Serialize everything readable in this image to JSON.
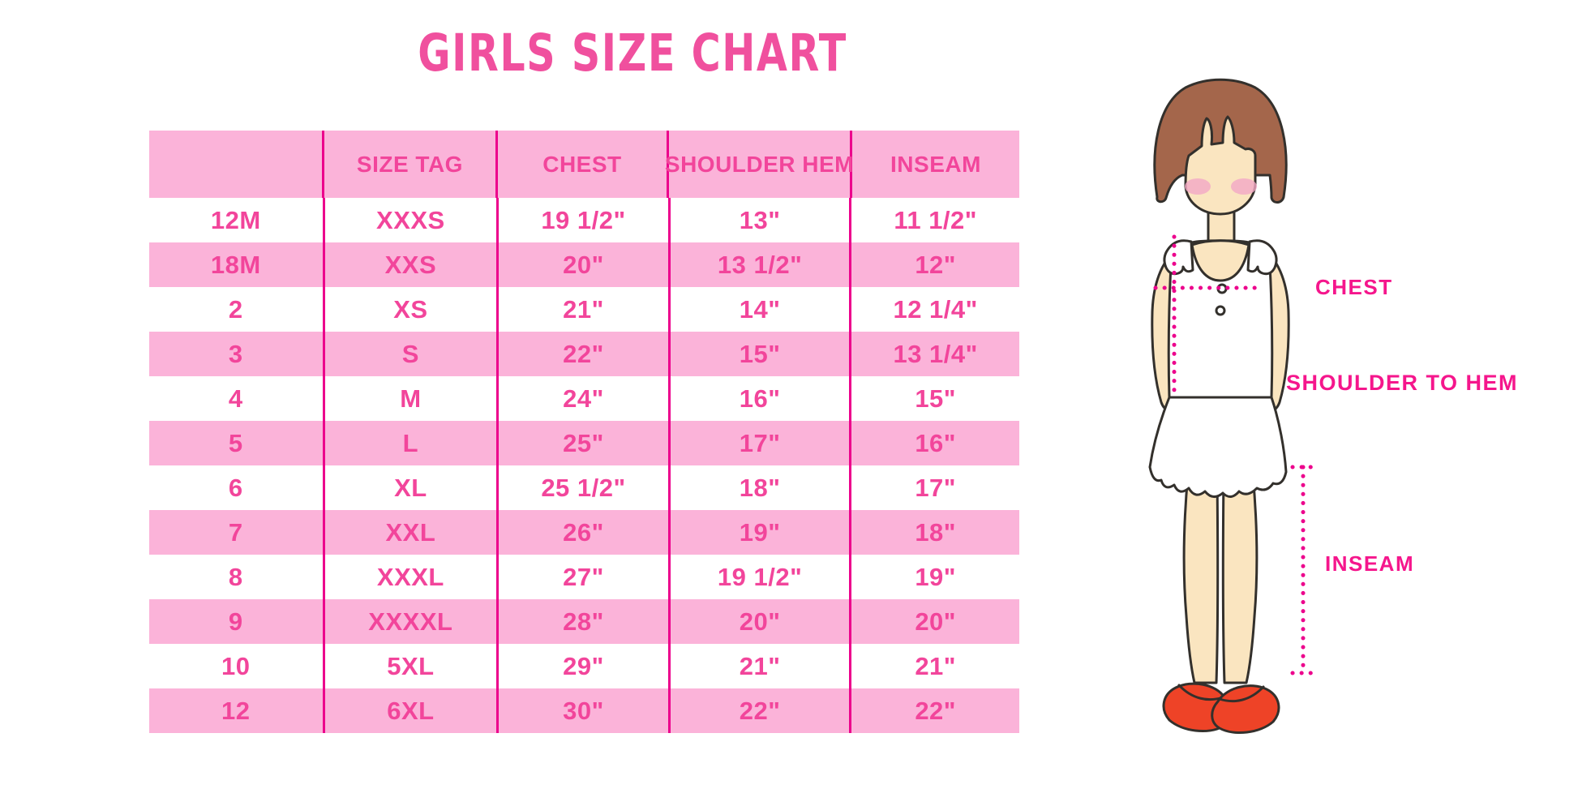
{
  "title": "GIRLS SIZE CHART",
  "colors": {
    "accent_pink": "#F0509E",
    "row_pink": "#FBB3D9",
    "divider": "#EC008C",
    "label_magenta": "#F5168C",
    "cell_text": "#F2459B",
    "hair": "#A4664B",
    "skin": "#FAE5C0",
    "blush": "#F2A8C5",
    "shoe": "#EE4327",
    "outline": "#33302C"
  },
  "chart_data": {
    "type": "table",
    "title": "GIRLS SIZE CHART",
    "columns": [
      "",
      "SIZE TAG",
      "CHEST",
      "SHOULDER HEM",
      "INSEAM"
    ],
    "rows": [
      [
        "12M",
        "XXXS",
        "19 1/2\"",
        "13\"",
        "11 1/2\""
      ],
      [
        "18M",
        "XXS",
        "20\"",
        "13 1/2\"",
        "12\""
      ],
      [
        "2",
        "XS",
        "21\"",
        "14\"",
        "12 1/4\""
      ],
      [
        "3",
        "S",
        "22\"",
        "15\"",
        "13 1/4\""
      ],
      [
        "4",
        "M",
        "24\"",
        "16\"",
        "15\""
      ],
      [
        "5",
        "L",
        "25\"",
        "17\"",
        "16\""
      ],
      [
        "6",
        "XL",
        "25 1/2\"",
        "18\"",
        "17\""
      ],
      [
        "7",
        "XXL",
        "26\"",
        "19\"",
        "18\""
      ],
      [
        "8",
        "XXXL",
        "27\"",
        "19 1/2\"",
        "19\""
      ],
      [
        "9",
        "XXXXL",
        "28\"",
        "20\"",
        "20\""
      ],
      [
        "10",
        "5XL",
        "29\"",
        "21\"",
        "21\""
      ],
      [
        "12",
        "6XL",
        "30\"",
        "22\"",
        "22\""
      ]
    ],
    "row_striping": "white/pink alternating",
    "legend_position": "none",
    "grid": "vertical magenta dividers only"
  },
  "diagram": {
    "labels": {
      "chest": "CHEST",
      "shoulder_to_hem": "SHOULDER TO HEM",
      "inseam": "INSEAM"
    }
  }
}
